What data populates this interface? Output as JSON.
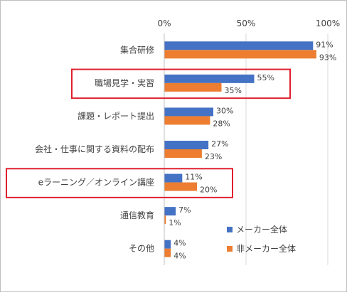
{
  "chart_data": {
    "type": "bar",
    "orientation": "horizontal",
    "title": "",
    "xlabel": "",
    "ylabel": "",
    "xlim": [
      0,
      100
    ],
    "x_tick_labels": [
      "0%",
      "50%",
      "100%"
    ],
    "x_tick_values": [
      0,
      50,
      100
    ],
    "grid": true,
    "legend_position": "bottom-right",
    "categories": [
      "集合研修",
      "職場見学・実習",
      "課題・レポート提出",
      "会社・仕事に関する資料の配布",
      "eラーニング／オンライン講座",
      "通信教育",
      "その他"
    ],
    "series": [
      {
        "name": "メーカー全体",
        "color": "#4472c4",
        "values": [
          91,
          55,
          30,
          27,
          11,
          7,
          4
        ],
        "labels": [
          "91%",
          "55%",
          "30%",
          "27%",
          "11%",
          "7%",
          "4%"
        ]
      },
      {
        "name": "非メーカー全体",
        "color": "#ed7d31",
        "values": [
          93,
          35,
          28,
          23,
          20,
          1,
          4
        ],
        "labels": [
          "93%",
          "35%",
          "28%",
          "23%",
          "20%",
          "1%",
          "4%"
        ]
      }
    ],
    "highlighted_categories": [
      "職場見学・実習",
      "eラーニング／オンライン講座"
    ],
    "highlight_color": "#e0202e"
  }
}
